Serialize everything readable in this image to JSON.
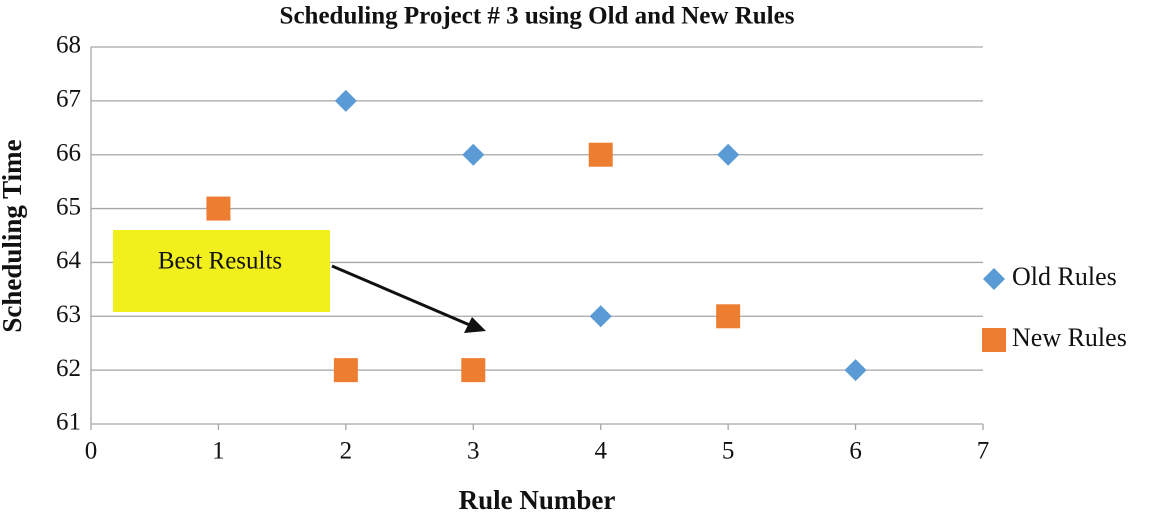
{
  "chart_data": {
    "type": "scatter",
    "title": "Scheduling Project # 3 using Old and New Rules",
    "x_label": "Rule Number",
    "y_label": "Scheduling Time",
    "series": [
      {
        "name": "Old Rules",
        "color": "#5b9bd5",
        "marker": "diamond",
        "x": [
          2,
          3,
          4,
          5,
          6
        ],
        "values": [
          67,
          66,
          63,
          66,
          62
        ]
      },
      {
        "name": "New Rules",
        "color": "#ed7d31",
        "marker": "square",
        "x": [
          1,
          2,
          3,
          4,
          5
        ],
        "values": [
          65,
          62,
          62,
          66,
          63
        ]
      }
    ],
    "xlim": [
      0,
      7
    ],
    "xticks": [
      0,
      1,
      2,
      3,
      4,
      5,
      6,
      7
    ],
    "ylim": [
      61,
      68
    ],
    "yticks": [
      61,
      62,
      63,
      64,
      65,
      66,
      67,
      68
    ],
    "grid": true,
    "legend": "right",
    "annotations": [
      {
        "text": "Best Results"
      }
    ]
  }
}
